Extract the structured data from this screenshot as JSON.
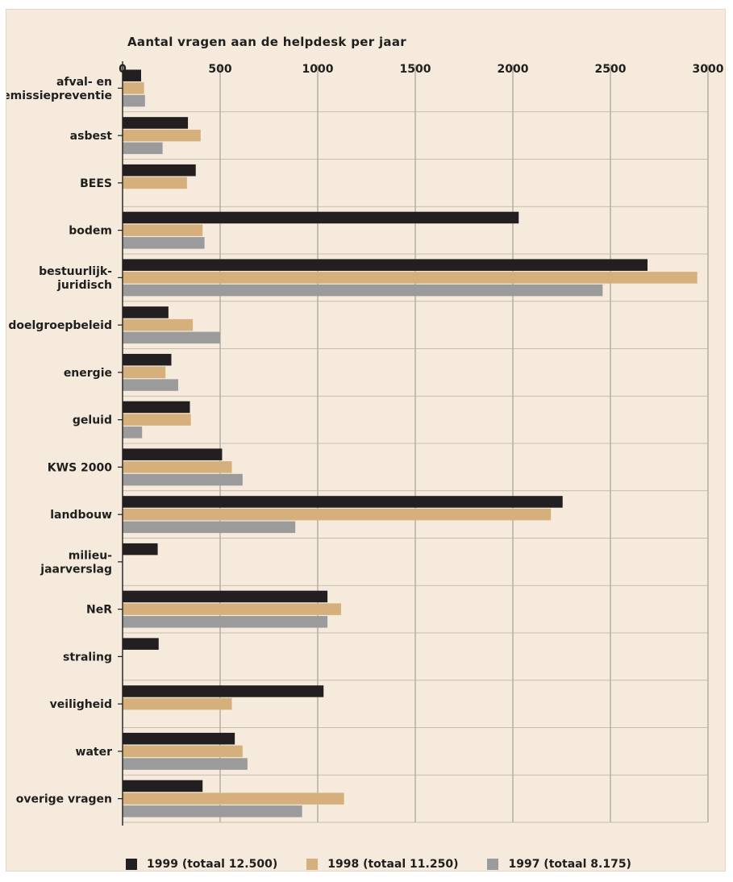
{
  "chart_data": {
    "type": "bar",
    "orientation": "horizontal",
    "title": "Aantal vragen aan de helpdesk per jaar",
    "xlim": [
      0,
      3000
    ],
    "xticks": [
      0,
      500,
      1000,
      1500,
      2000,
      2500,
      3000
    ],
    "grid": true,
    "legend_position": "bottom",
    "categories": [
      "afval- en emissiepreventie",
      "asbest",
      "BEES",
      "bodem",
      "bestuurlijk-juridisch",
      "doelgroepbeleid",
      "energie",
      "geluid",
      "KWS 2000",
      "landbouw",
      "milieu-jaarverslag",
      "NeR",
      "straling",
      "veiligheid",
      "water",
      "overige vragen"
    ],
    "category_lines": [
      [
        "afval- en",
        "emissiepreventie"
      ],
      [
        "asbest"
      ],
      [
        "BEES"
      ],
      [
        "bodem"
      ],
      [
        "bestuurlijk-",
        "juridisch"
      ],
      [
        "doelgroepbeleid"
      ],
      [
        "energie"
      ],
      [
        "geluid"
      ],
      [
        "KWS 2000"
      ],
      [
        "landbouw"
      ],
      [
        "milieu-",
        "jaarverslag"
      ],
      [
        "NeR"
      ],
      [
        "straling"
      ],
      [
        "veiligheid"
      ],
      [
        "water"
      ],
      [
        "overige vragen"
      ]
    ],
    "series": [
      {
        "name": "1999 (totaal 12.500)",
        "color": "#231f20",
        "values": [
          95,
          335,
          375,
          2030,
          2690,
          235,
          250,
          345,
          510,
          2255,
          180,
          1050,
          185,
          1030,
          575,
          410
        ]
      },
      {
        "name": "1998 (totaal 11.250)",
        "color": "#d6b07c",
        "values": [
          110,
          400,
          330,
          410,
          2945,
          360,
          220,
          350,
          560,
          2195,
          0,
          1120,
          0,
          560,
          615,
          1135
        ]
      },
      {
        "name": "1997 (totaal 8.175)",
        "color": "#9b9b9b",
        "values": [
          115,
          205,
          0,
          420,
          2460,
          500,
          285,
          100,
          615,
          885,
          0,
          1050,
          0,
          0,
          640,
          920
        ]
      }
    ]
  }
}
